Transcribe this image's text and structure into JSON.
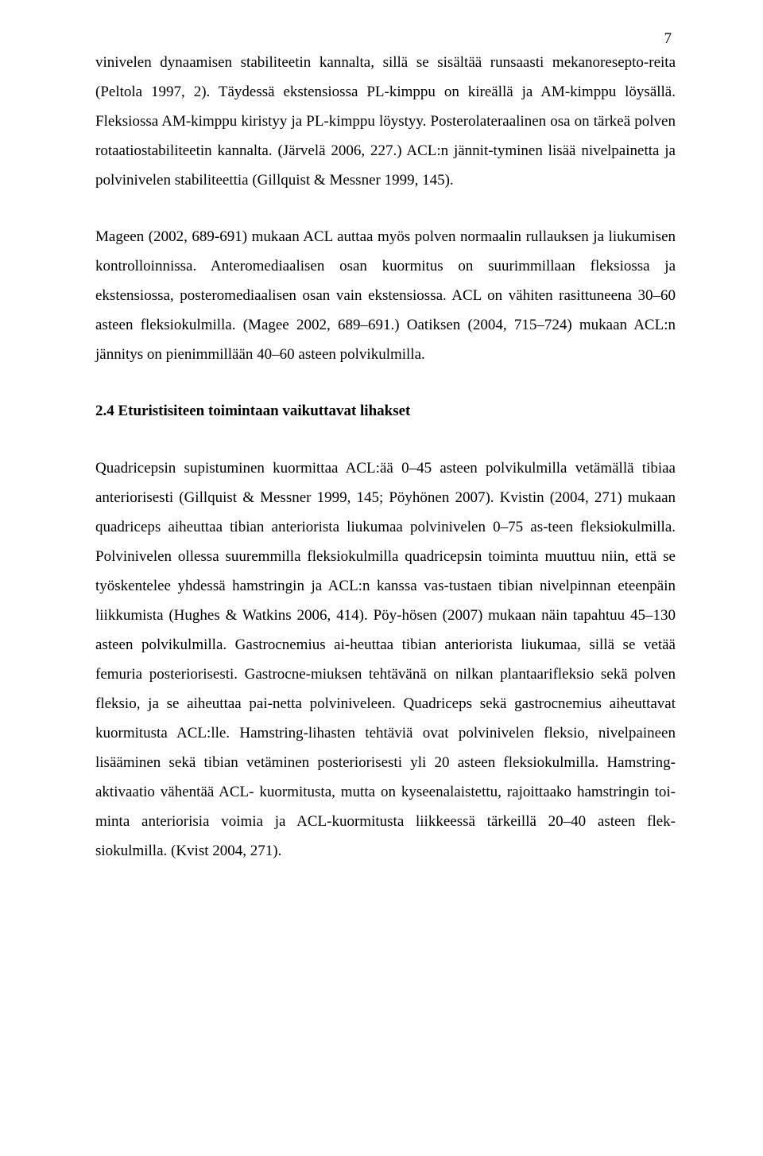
{
  "page_number": "7",
  "paragraphs": {
    "p1": "vinivelen dynaamisen stabiliteetin kannalta, sillä se sisältää runsaasti mekanoresepto-reita (Peltola 1997, 2). Täydessä ekstensiossa PL-kimppu on kireällä ja AM-kimppu löysällä. Fleksiossa AM-kimppu kiristyy ja PL-kimppu löystyy. Posterolateraalinen osa on tärkeä polven rotaatiostabiliteetin kannalta. (Järvelä 2006, 227.) ACL:n jännit-tyminen lisää nivelpainetta ja polvinivelen stabiliteettia (Gillquist & Messner 1999, 145).",
    "p2": "Mageen (2002, 689-691) mukaan ACL auttaa myös polven normaalin rullauksen ja liukumisen kontrolloinnissa. Anteromediaalisen osan kuormitus on suurimmillaan fleksiossa ja ekstensiossa, posteromediaalisen osan vain ekstensiossa. ACL on vähiten rasittuneena 30–60 asteen fleksiokulmilla. (Magee 2002, 689–691.) Oatiksen (2004, 715–724) mukaan ACL:n jännitys on pienimmillään 40–60 asteen polvikulmilla.",
    "p3": "Quadricepsin supistuminen kuormittaa ACL:ää 0–45 asteen polvikulmilla vetämällä tibiaa anteriorisesti (Gillquist & Messner 1999, 145; Pöyhönen 2007). Kvistin (2004, 271) mukaan quadriceps aiheuttaa tibian anteriorista liukumaa polvinivelen 0–75 as-teen fleksiokulmilla. Polvinivelen ollessa suuremmilla fleksiokulmilla quadricepsin toiminta muuttuu niin, että se työskentelee yhdessä hamstringin ja ACL:n kanssa vas-tustaen tibian nivelpinnan eteenpäin liikkumista (Hughes & Watkins 2006, 414). Pöy-hösen (2007) mukaan näin tapahtuu 45–130 asteen polvikulmilla. Gastrocnemius ai-heuttaa tibian anteriorista liukumaa, sillä se vetää femuria posteriorisesti. Gastrocne-miuksen tehtävänä on nilkan plantaarifleksio sekä polven fleksio, ja se aiheuttaa pai-netta polviniveleen. Quadriceps sekä gastrocnemius aiheuttavat kuormitusta ACL:lle. Hamstring-lihasten tehtäviä ovat polvinivelen fleksio, nivelpaineen lisääminen sekä tibian vetäminen posteriorisesti yli 20 asteen fleksiokulmilla. Hamstring-aktivaatio vähentää ACL- kuormitusta, mutta on kyseenalaistettu, rajoittaako hamstringin toi-minta anteriorisia voimia ja ACL-kuormitusta liikkeessä tärkeillä 20–40 asteen flek-siokulmilla. (Kvist 2004, 271)."
  },
  "heading": "2.4 Eturistisiteen toimintaan vaikuttavat lihakset"
}
